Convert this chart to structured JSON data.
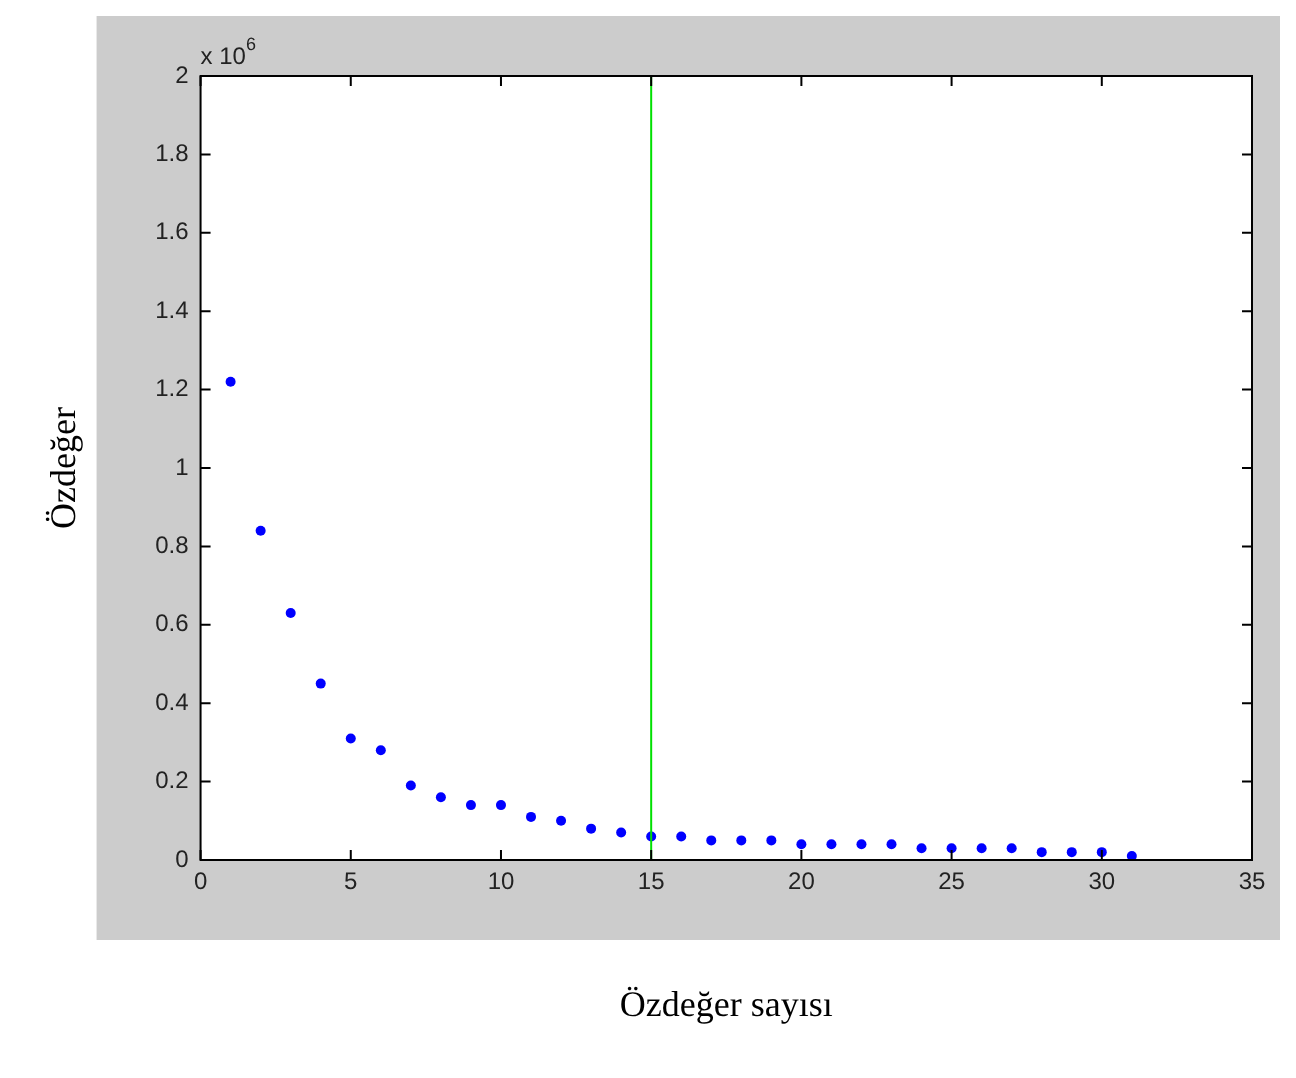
{
  "chart_data": {
    "type": "scatter",
    "xlabel": "Özdeğer sayısı",
    "ylabel": "Özdeğer",
    "annotations": [
      "x 10$^{6}$"
    ],
    "x": [
      1,
      2,
      3,
      4,
      5,
      6,
      7,
      8,
      9,
      10,
      11,
      12,
      13,
      14,
      15,
      16,
      17,
      18,
      19,
      20,
      21,
      22,
      23,
      24,
      25,
      26,
      27,
      28,
      29,
      30,
      31
    ],
    "series": [
      {
        "color": "#0000ff",
        "values": [
          1.22,
          0.84,
          0.63,
          0.45,
          0.31,
          0.28,
          0.19,
          0.16,
          0.14,
          0.14,
          0.11,
          0.1,
          0.08,
          0.07,
          0.06,
          0.06,
          0.05,
          0.05,
          0.05,
          0.04,
          0.04,
          0.04,
          0.04,
          0.03,
          0.03,
          0.03,
          0.03,
          0.02,
          0.02,
          0.02,
          0.01
        ]
      }
    ],
    "xlim": [
      0,
      35
    ],
    "xticks": [
      0,
      5,
      10,
      15,
      20,
      25,
      30,
      35
    ],
    "ylim": [
      0,
      2
    ],
    "yticks": [
      0,
      0.2,
      0.4,
      0.6,
      0.8,
      1,
      1.2,
      1.4,
      1.6,
      1.8,
      2
    ],
    "ref_lines": [
      {
        "axis": "x",
        "value": 15,
        "color": "#00e000"
      }
    ],
    "grid": false,
    "legend": false,
    "marker": "circle"
  }
}
